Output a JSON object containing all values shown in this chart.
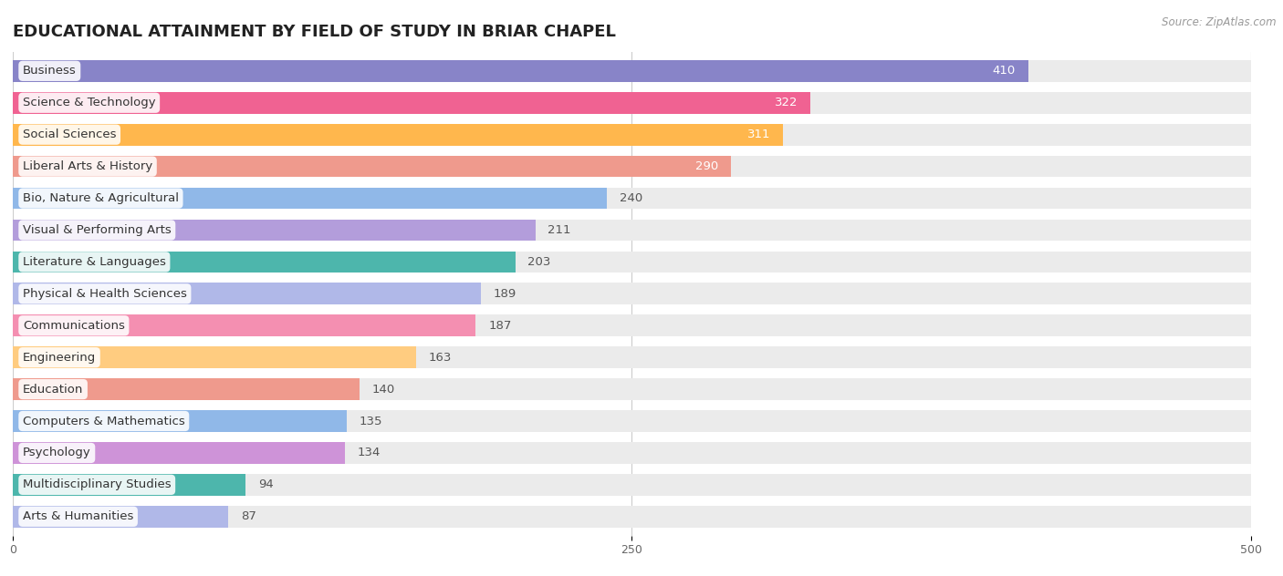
{
  "title": "EDUCATIONAL ATTAINMENT BY FIELD OF STUDY IN BRIAR CHAPEL",
  "source": "Source: ZipAtlas.com",
  "categories": [
    "Business",
    "Science & Technology",
    "Social Sciences",
    "Liberal Arts & History",
    "Bio, Nature & Agricultural",
    "Visual & Performing Arts",
    "Literature & Languages",
    "Physical & Health Sciences",
    "Communications",
    "Engineering",
    "Education",
    "Computers & Mathematics",
    "Psychology",
    "Multidisciplinary Studies",
    "Arts & Humanities"
  ],
  "values": [
    410,
    322,
    311,
    290,
    240,
    211,
    203,
    189,
    187,
    163,
    140,
    135,
    134,
    94,
    87
  ],
  "bar_colors": [
    "#8884c8",
    "#f06292",
    "#ffb74d",
    "#ef9a8d",
    "#90b8e8",
    "#b39ddb",
    "#4db6ac",
    "#b0b8e8",
    "#f48fb1",
    "#ffcc80",
    "#ef9a8d",
    "#90b8e8",
    "#ce93d8",
    "#4db6ac",
    "#b0b8e8"
  ],
  "xlim": [
    0,
    500
  ],
  "xticks": [
    0,
    250,
    500
  ],
  "background_color": "#ffffff",
  "bar_bg_color": "#ebebeb",
  "title_fontsize": 13,
  "label_fontsize": 9.5,
  "value_fontsize": 9.5
}
